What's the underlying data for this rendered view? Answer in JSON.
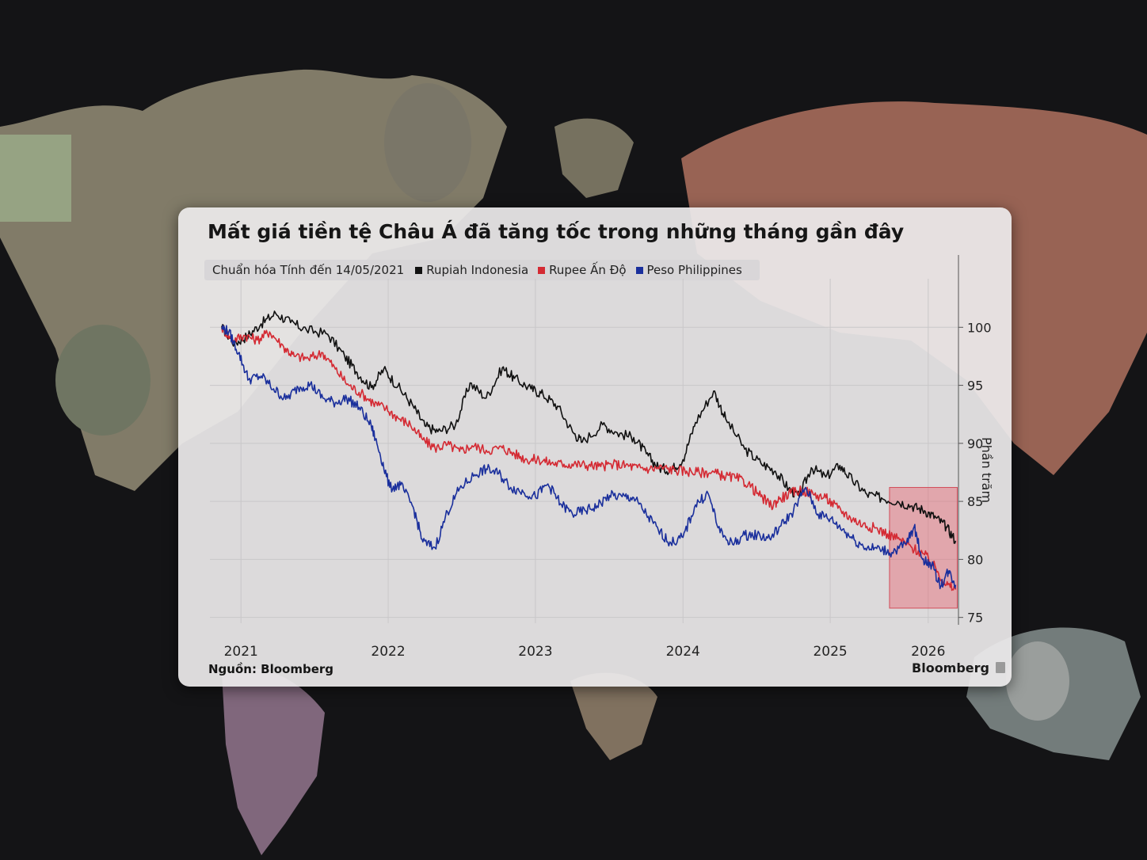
{
  "title": "Mất giá tiền tệ Châu Á đã tăng tốc trong những tháng gần đây",
  "legend": {
    "note": "Chuẩn hóa Tính đến 14/05/2021",
    "items": [
      {
        "label": "Rupiah Indonesia",
        "color": "#111111"
      },
      {
        "label": "Rupee Ấn Độ",
        "color": "#d42a33"
      },
      {
        "label": "Peso Philippines",
        "color": "#1a2f9c"
      }
    ]
  },
  "unit_label": "Phần trăm",
  "source": "Nguồn: Bloomberg",
  "brand": "Bloomberg",
  "chart_data": {
    "type": "line",
    "ylabel": "Phần trăm",
    "ylim": [
      74.5,
      103.5
    ],
    "yticks": [
      75,
      80,
      85,
      90,
      95,
      100
    ],
    "xlim": [
      "2021-04-15",
      "2026-05-15"
    ],
    "xticks": [
      {
        "label": "2021",
        "date": "2021-07-01"
      },
      {
        "label": "2022",
        "date": "2022-07-01"
      },
      {
        "label": "2023",
        "date": "2023-07-01"
      },
      {
        "label": "2024",
        "date": "2024-07-01"
      },
      {
        "label": "2025",
        "date": "2025-07-01"
      },
      {
        "label": "2026",
        "date": "2026-03-01"
      }
    ],
    "highlight": {
      "x": [
        "2025-11-25",
        "2026-05-12"
      ],
      "y": [
        75.8,
        86.2
      ],
      "color": "#e8606c"
    },
    "grid": true,
    "series": [
      {
        "name": "Rupiah Indonesia",
        "color": "#111111",
        "points": [
          [
            "2021-05-14",
            100.0
          ],
          [
            "2021-06-15",
            98.6
          ],
          [
            "2021-07-15",
            99.2
          ],
          [
            "2021-08-20",
            100.3
          ],
          [
            "2021-09-25",
            101.2
          ],
          [
            "2021-11-01",
            100.4
          ],
          [
            "2021-12-10",
            99.8
          ],
          [
            "2022-02-01",
            99.4
          ],
          [
            "2022-03-15",
            97.5
          ],
          [
            "2022-04-15",
            96.1
          ],
          [
            "2022-05-20",
            94.8
          ],
          [
            "2022-06-20",
            96.4
          ],
          [
            "2022-07-25",
            94.9
          ],
          [
            "2022-09-01",
            93.2
          ],
          [
            "2022-09-30",
            91.5
          ],
          [
            "2022-11-01",
            91.0
          ],
          [
            "2022-12-15",
            91.6
          ],
          [
            "2023-01-20",
            95.2
          ],
          [
            "2023-03-01",
            93.9
          ],
          [
            "2023-04-10",
            96.5
          ],
          [
            "2023-05-10",
            95.6
          ],
          [
            "2023-06-20",
            94.7
          ],
          [
            "2023-07-20",
            94.2
          ],
          [
            "2023-08-25",
            93.2
          ],
          [
            "2023-10-01",
            91.0
          ],
          [
            "2023-10-25",
            90.1
          ],
          [
            "2023-12-15",
            91.6
          ],
          [
            "2024-01-20",
            90.9
          ],
          [
            "2024-03-01",
            90.5
          ],
          [
            "2024-04-01",
            89.1
          ],
          [
            "2024-05-01",
            87.9
          ],
          [
            "2024-06-01",
            87.7
          ],
          [
            "2024-07-01",
            88.6
          ],
          [
            "2024-08-01",
            91.8
          ],
          [
            "2024-09-15",
            94.5
          ],
          [
            "2024-10-15",
            92.1
          ],
          [
            "2024-12-01",
            89.5
          ],
          [
            "2025-01-10",
            88.3
          ],
          [
            "2025-02-15",
            87.6
          ],
          [
            "2025-03-20",
            86.1
          ],
          [
            "2025-04-15",
            85.4
          ],
          [
            "2025-05-15",
            87.9
          ],
          [
            "2025-06-20",
            87.1
          ],
          [
            "2025-07-25",
            88.1
          ],
          [
            "2025-08-25",
            86.8
          ],
          [
            "2025-09-30",
            85.6
          ],
          [
            "2025-11-05",
            85.3
          ],
          [
            "2025-12-15",
            85.0
          ],
          [
            "2026-01-20",
            84.6
          ],
          [
            "2026-02-20",
            84.2
          ],
          [
            "2026-03-20",
            83.6
          ],
          [
            "2026-04-15",
            82.8
          ],
          [
            "2026-05-08",
            81.6
          ]
        ]
      },
      {
        "name": "Rupee Ấn Độ",
        "color": "#d42a33",
        "points": [
          [
            "2021-05-14",
            100.0
          ],
          [
            "2021-06-10",
            98.9
          ],
          [
            "2021-07-10",
            99.3
          ],
          [
            "2021-08-10",
            98.9
          ],
          [
            "2021-09-10",
            99.6
          ],
          [
            "2021-10-15",
            98.3
          ],
          [
            "2021-11-10",
            97.5
          ],
          [
            "2021-12-15",
            97.3
          ],
          [
            "2022-01-20",
            97.8
          ],
          [
            "2022-02-20",
            96.4
          ],
          [
            "2022-03-25",
            95.0
          ],
          [
            "2022-04-25",
            94.3
          ],
          [
            "2022-05-25",
            93.5
          ],
          [
            "2022-06-25",
            93.0
          ],
          [
            "2022-07-25",
            92.2
          ],
          [
            "2022-08-25",
            91.6
          ],
          [
            "2022-09-25",
            90.3
          ],
          [
            "2022-10-25",
            89.6
          ],
          [
            "2022-11-25",
            89.9
          ],
          [
            "2022-12-25",
            89.3
          ],
          [
            "2023-01-25",
            89.8
          ],
          [
            "2023-03-01",
            89.4
          ],
          [
            "2023-04-10",
            89.6
          ],
          [
            "2023-05-10",
            89.1
          ],
          [
            "2023-06-10",
            88.6
          ],
          [
            "2023-07-10",
            88.6
          ],
          [
            "2023-08-10",
            88.3
          ],
          [
            "2023-09-10",
            88.2
          ],
          [
            "2023-10-10",
            88.2
          ],
          [
            "2023-11-10",
            88.1
          ],
          [
            "2023-12-10",
            88.0
          ],
          [
            "2024-01-10",
            88.2
          ],
          [
            "2024-02-10",
            88.1
          ],
          [
            "2024-03-10",
            87.9
          ],
          [
            "2024-04-10",
            87.8
          ],
          [
            "2024-05-10",
            87.9
          ],
          [
            "2024-06-10",
            87.7
          ],
          [
            "2024-07-10",
            87.6
          ],
          [
            "2024-08-10",
            87.5
          ],
          [
            "2024-09-10",
            87.5
          ],
          [
            "2024-10-10",
            87.2
          ],
          [
            "2024-11-10",
            87.0
          ],
          [
            "2024-12-10",
            86.5
          ],
          [
            "2025-01-10",
            85.4
          ],
          [
            "2025-02-05",
            84.6
          ],
          [
            "2025-02-25",
            85.2
          ],
          [
            "2025-03-25",
            85.7
          ],
          [
            "2025-04-20",
            86.0
          ],
          [
            "2025-05-20",
            85.6
          ],
          [
            "2025-06-20",
            85.3
          ],
          [
            "2025-07-20",
            84.4
          ],
          [
            "2025-08-20",
            83.6
          ],
          [
            "2025-09-20",
            83.0
          ],
          [
            "2025-10-20",
            82.7
          ],
          [
            "2025-11-20",
            82.2
          ],
          [
            "2025-12-20",
            81.7
          ],
          [
            "2026-01-20",
            81.0
          ],
          [
            "2026-02-20",
            80.4
          ],
          [
            "2026-03-20",
            79.2
          ],
          [
            "2026-04-15",
            77.8
          ],
          [
            "2026-05-08",
            77.4
          ]
        ]
      },
      {
        "name": "Peso Philippines",
        "color": "#1a2f9c",
        "points": [
          [
            "2021-05-14",
            100.0
          ],
          [
            "2021-06-01",
            99.6
          ],
          [
            "2021-06-25",
            97.8
          ],
          [
            "2021-07-20",
            95.5
          ],
          [
            "2021-08-20",
            95.8
          ],
          [
            "2021-09-20",
            94.7
          ],
          [
            "2021-10-20",
            93.8
          ],
          [
            "2021-11-20",
            94.8
          ],
          [
            "2021-12-20",
            95.1
          ],
          [
            "2022-01-20",
            93.9
          ],
          [
            "2022-02-20",
            93.5
          ],
          [
            "2022-03-20",
            93.9
          ],
          [
            "2022-04-20",
            93.1
          ],
          [
            "2022-05-20",
            91.5
          ],
          [
            "2022-06-10",
            89.2
          ],
          [
            "2022-07-05",
            86.2
          ],
          [
            "2022-08-01",
            86.4
          ],
          [
            "2022-09-01",
            84.5
          ],
          [
            "2022-09-25",
            81.5
          ],
          [
            "2022-10-25",
            81.0
          ],
          [
            "2022-11-25",
            84.1
          ],
          [
            "2022-12-25",
            86.1
          ],
          [
            "2023-02-01",
            87.3
          ],
          [
            "2023-03-01",
            87.8
          ],
          [
            "2023-04-01",
            87.4
          ],
          [
            "2023-05-01",
            86.2
          ],
          [
            "2023-06-01",
            85.8
          ],
          [
            "2023-07-01",
            85.4
          ],
          [
            "2023-08-01",
            86.5
          ],
          [
            "2023-09-01",
            84.8
          ],
          [
            "2023-10-01",
            83.9
          ],
          [
            "2023-11-01",
            84.2
          ],
          [
            "2023-12-01",
            84.6
          ],
          [
            "2024-01-01",
            85.5
          ],
          [
            "2024-02-01",
            85.4
          ],
          [
            "2024-03-01",
            85.3
          ],
          [
            "2024-04-01",
            83.9
          ],
          [
            "2024-05-01",
            82.5
          ],
          [
            "2024-06-01",
            81.4
          ],
          [
            "2024-07-01",
            81.9
          ],
          [
            "2024-08-01",
            84.7
          ],
          [
            "2024-09-01",
            85.7
          ],
          [
            "2024-10-01",
            82.3
          ],
          [
            "2024-11-01",
            81.3
          ],
          [
            "2024-12-01",
            82.1
          ],
          [
            "2025-01-01",
            82.1
          ],
          [
            "2025-02-01",
            81.8
          ],
          [
            "2025-03-01",
            82.9
          ],
          [
            "2025-04-01",
            84.2
          ],
          [
            "2025-05-01",
            86.2
          ],
          [
            "2025-06-01",
            83.9
          ],
          [
            "2025-07-01",
            83.5
          ],
          [
            "2025-08-01",
            82.6
          ],
          [
            "2025-09-01",
            81.6
          ],
          [
            "2025-10-01",
            81.0
          ],
          [
            "2025-11-01",
            80.9
          ],
          [
            "2025-12-01",
            80.6
          ],
          [
            "2026-01-05",
            81.3
          ],
          [
            "2026-01-25",
            82.8
          ],
          [
            "2026-02-15",
            80.0
          ],
          [
            "2026-03-10",
            79.5
          ],
          [
            "2026-04-01",
            77.7
          ],
          [
            "2026-04-20",
            79.0
          ],
          [
            "2026-05-08",
            77.8
          ]
        ]
      }
    ]
  }
}
